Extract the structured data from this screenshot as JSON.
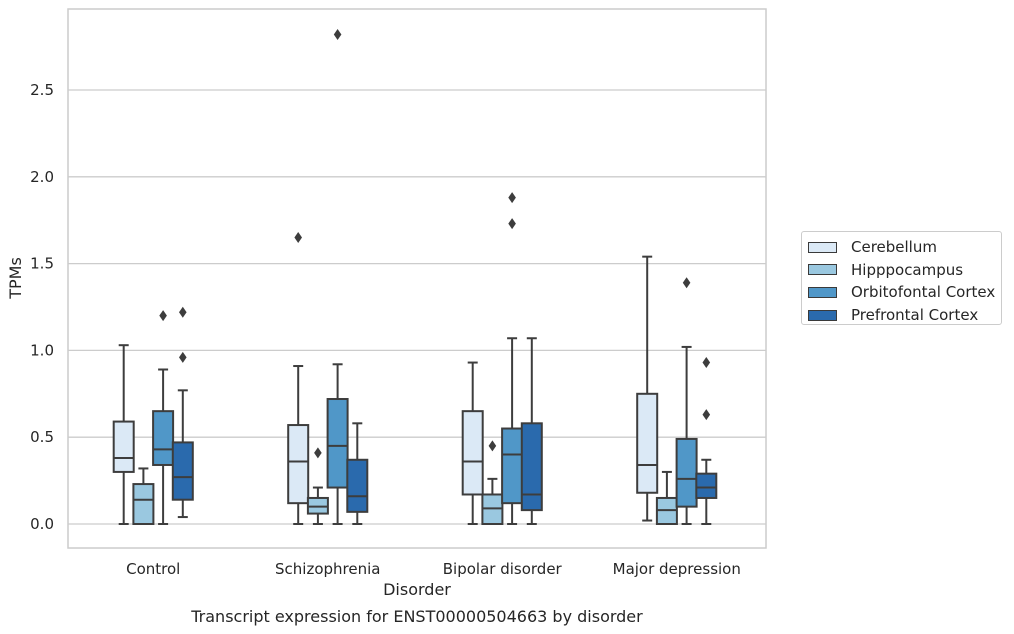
{
  "chart_data": {
    "type": "box",
    "title": "Transcript expression for ENST00000504663 by disorder",
    "xlabel": "Disorder",
    "ylabel": "TPMs",
    "ylim": [
      -0.14,
      2.97
    ],
    "yticks": [
      "0.0",
      "0.5",
      "1.0",
      "1.5",
      "2.0",
      "2.5"
    ],
    "grid": "horizontal",
    "legend_position": "right",
    "categories": [
      "Control",
      "Schizophrenia",
      "Bipolar disorder",
      "Major depression"
    ],
    "series": [
      {
        "name": "Cerebellum",
        "color": "#dbe9f6",
        "boxes": [
          {
            "min": 0.0,
            "q1": 0.3,
            "median": 0.38,
            "q3": 0.59,
            "max": 1.03,
            "outliers": []
          },
          {
            "min": 0.0,
            "q1": 0.12,
            "median": 0.36,
            "q3": 0.57,
            "max": 0.91,
            "outliers": [
              1.65
            ]
          },
          {
            "min": 0.0,
            "q1": 0.17,
            "median": 0.36,
            "q3": 0.65,
            "max": 0.93,
            "outliers": []
          },
          {
            "min": 0.02,
            "q1": 0.18,
            "median": 0.34,
            "q3": 0.75,
            "max": 1.54,
            "outliers": []
          }
        ]
      },
      {
        "name": "Hipppocampus",
        "color": "#9ac8e0",
        "boxes": [
          {
            "min": 0.0,
            "q1": 0.0,
            "median": 0.14,
            "q3": 0.23,
            "max": 0.32,
            "outliers": []
          },
          {
            "min": 0.0,
            "q1": 0.06,
            "median": 0.1,
            "q3": 0.15,
            "max": 0.21,
            "outliers": [
              0.41
            ]
          },
          {
            "min": 0.0,
            "q1": 0.0,
            "median": 0.09,
            "q3": 0.17,
            "max": 0.26,
            "outliers": [
              0.45
            ]
          },
          {
            "min": 0.0,
            "q1": 0.0,
            "median": 0.08,
            "q3": 0.15,
            "max": 0.3,
            "outliers": []
          }
        ]
      },
      {
        "name": "Orbitofontal Cortex",
        "color": "#5097c8",
        "boxes": [
          {
            "min": 0.0,
            "q1": 0.34,
            "median": 0.43,
            "q3": 0.65,
            "max": 0.89,
            "outliers": [
              1.2
            ]
          },
          {
            "min": 0.0,
            "q1": 0.21,
            "median": 0.45,
            "q3": 0.72,
            "max": 0.92,
            "outliers": [
              2.82
            ]
          },
          {
            "min": 0.0,
            "q1": 0.12,
            "median": 0.4,
            "q3": 0.55,
            "max": 1.07,
            "outliers": [
              1.73,
              1.88
            ]
          },
          {
            "min": 0.0,
            "q1": 0.1,
            "median": 0.26,
            "q3": 0.49,
            "max": 1.02,
            "outliers": [
              1.39
            ]
          }
        ]
      },
      {
        "name": "Prefrontal Cortex",
        "color": "#2a6aad",
        "boxes": [
          {
            "min": 0.04,
            "q1": 0.14,
            "median": 0.27,
            "q3": 0.47,
            "max": 0.77,
            "outliers": [
              0.96,
              1.22
            ]
          },
          {
            "min": 0.0,
            "q1": 0.07,
            "median": 0.16,
            "q3": 0.37,
            "max": 0.58,
            "outliers": []
          },
          {
            "min": 0.0,
            "q1": 0.08,
            "median": 0.17,
            "q3": 0.58,
            "max": 1.07,
            "outliers": []
          },
          {
            "min": 0.0,
            "q1": 0.15,
            "median": 0.21,
            "q3": 0.29,
            "max": 0.37,
            "outliers": [
              0.63,
              0.93
            ]
          }
        ]
      }
    ]
  }
}
